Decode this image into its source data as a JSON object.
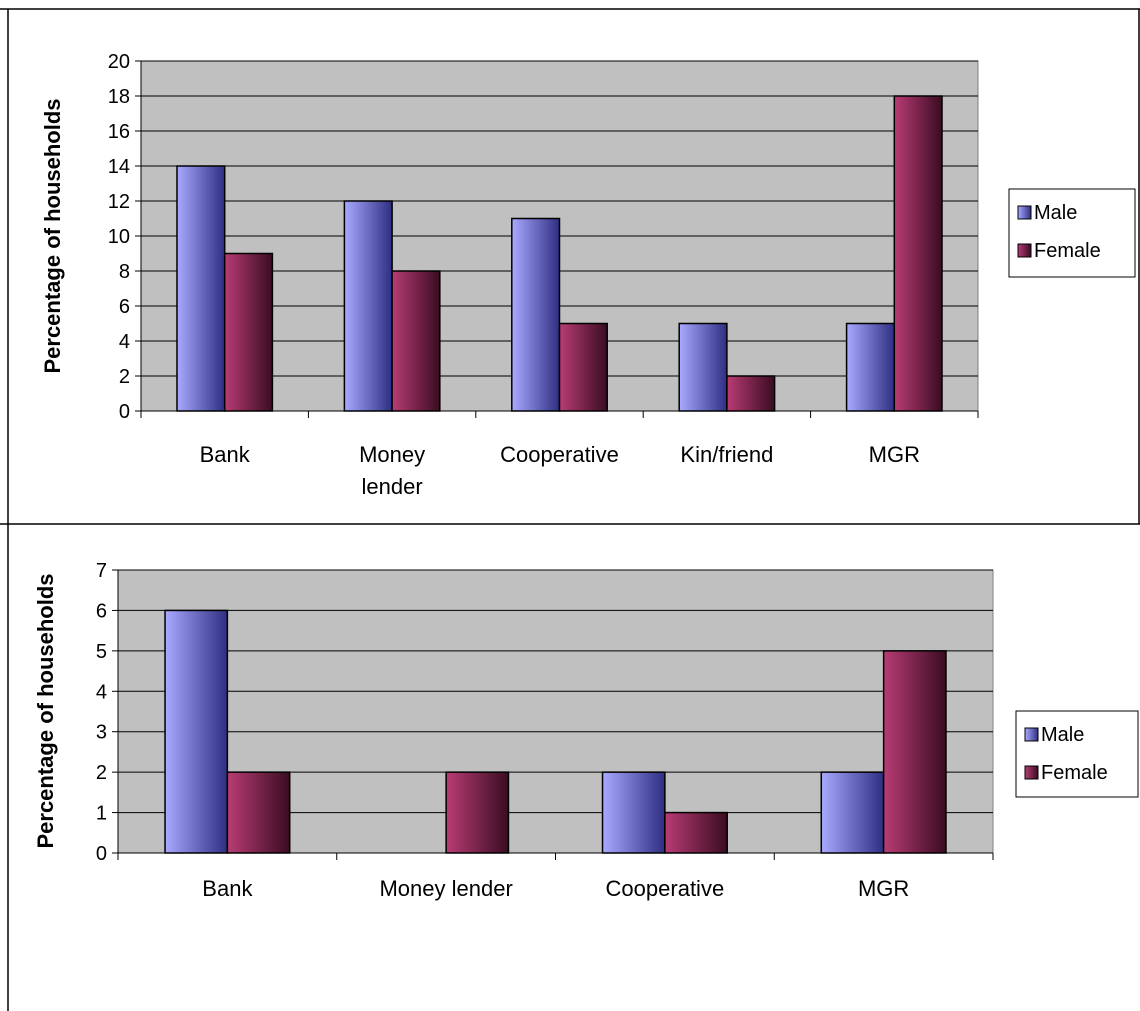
{
  "colors": {
    "male_light": "#a9a9ff",
    "male_dark": "#2e2e82",
    "female_light": "#b83c74",
    "female_dark": "#3a0c22",
    "plot_bg": "#c0c0c0",
    "grid": "#000000"
  },
  "chart_data": [
    {
      "type": "bar",
      "title": "",
      "xlabel": "",
      "ylabel": "Percentage of households",
      "categories": [
        [
          "Bank"
        ],
        [
          "Money",
          "lender"
        ],
        [
          "Cooperative"
        ],
        [
          "Kin/friend"
        ],
        [
          "MGR"
        ]
      ],
      "series": [
        {
          "name": "Male",
          "values": [
            14,
            12,
            11,
            5,
            5
          ]
        },
        {
          "name": "Female",
          "values": [
            9,
            8,
            5,
            2,
            18
          ]
        }
      ],
      "ylim": [
        0,
        20
      ],
      "ytick_step": 2,
      "grid": true,
      "legend": "right"
    },
    {
      "type": "bar",
      "title": "",
      "xlabel": "",
      "ylabel": "Percentage of households",
      "categories": [
        [
          "Bank"
        ],
        [
          "Money lender"
        ],
        [
          "Cooperative"
        ],
        [
          "MGR"
        ]
      ],
      "series": [
        {
          "name": "Male",
          "values": [
            6,
            0,
            2,
            2
          ]
        },
        {
          "name": "Female",
          "values": [
            2,
            2,
            1,
            5
          ]
        }
      ],
      "ylim": [
        0,
        7
      ],
      "ytick_step": 1,
      "grid": true,
      "legend": "right"
    }
  ]
}
